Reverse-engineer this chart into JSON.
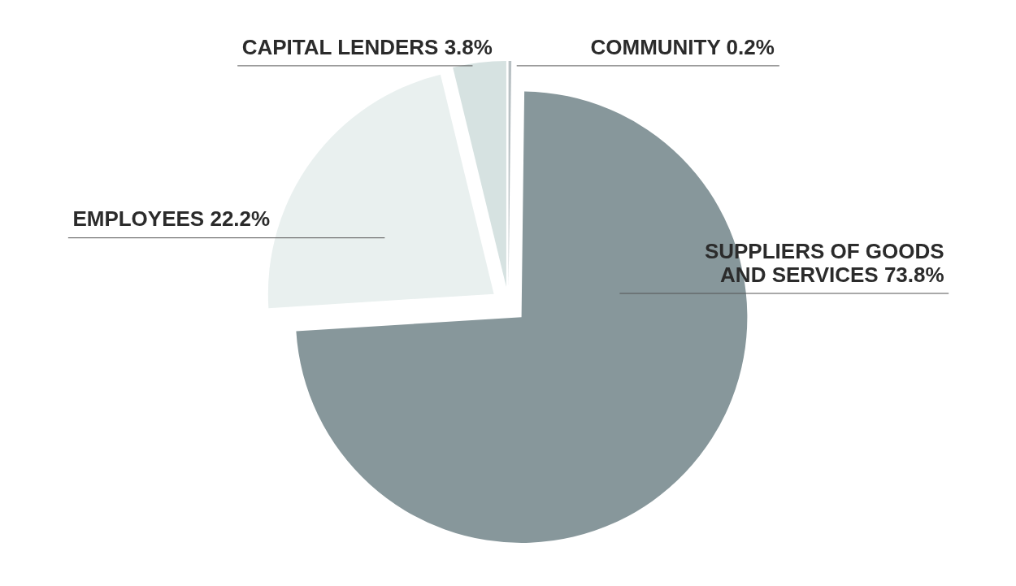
{
  "chart_data": {
    "type": "pie",
    "categories": [
      "COMMUNITY",
      "SUPPLIERS OF GOODS AND SERVICES",
      "EMPLOYEES",
      "CAPITAL LENDERS"
    ],
    "values": [
      0.2,
      73.8,
      22.2,
      3.8
    ],
    "value_labels": [
      "0.2%",
      "73.8%",
      "22.2%",
      "3.8%"
    ],
    "colors": [
      "#b9c1c4",
      "#87979b",
      "#e9f0ef",
      "#d6e2e1"
    ]
  }
}
